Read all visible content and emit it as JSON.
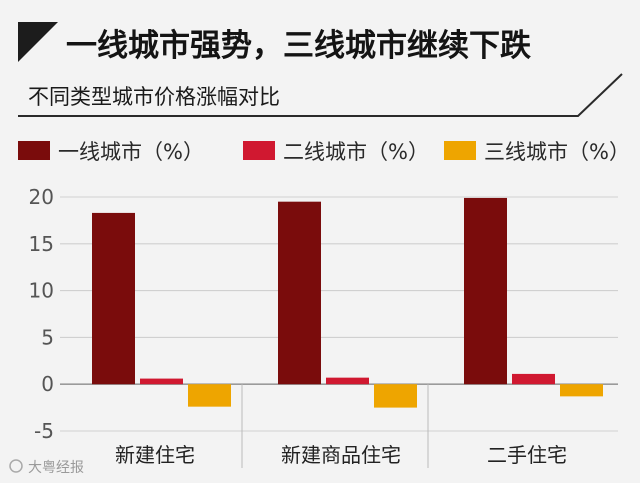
{
  "headline": "一线城市强势，三线城市继续下跌",
  "subtitle": "不同类型城市价格涨幅对比",
  "watermark": "大粤经报",
  "colors": {
    "series1": "#7a0c0c",
    "series2": "#d01830",
    "series3": "#eea500"
  },
  "chart_data": {
    "type": "bar",
    "categories": [
      "新建住宅",
      "新建商品住宅",
      "二手住宅"
    ],
    "series": [
      {
        "name": "一线城市（%）",
        "values": [
          18.3,
          19.5,
          19.9
        ]
      },
      {
        "name": "二线城市（%）",
        "values": [
          0.6,
          0.7,
          1.1
        ]
      },
      {
        "name": "三线城市（%）",
        "values": [
          -2.4,
          -2.5,
          -1.3
        ]
      }
    ],
    "yticks": [
      "20",
      "15",
      "10",
      "5",
      "0",
      "-5"
    ],
    "ylim": [
      -5,
      20
    ],
    "legend": "top",
    "grid": "horizontal"
  }
}
